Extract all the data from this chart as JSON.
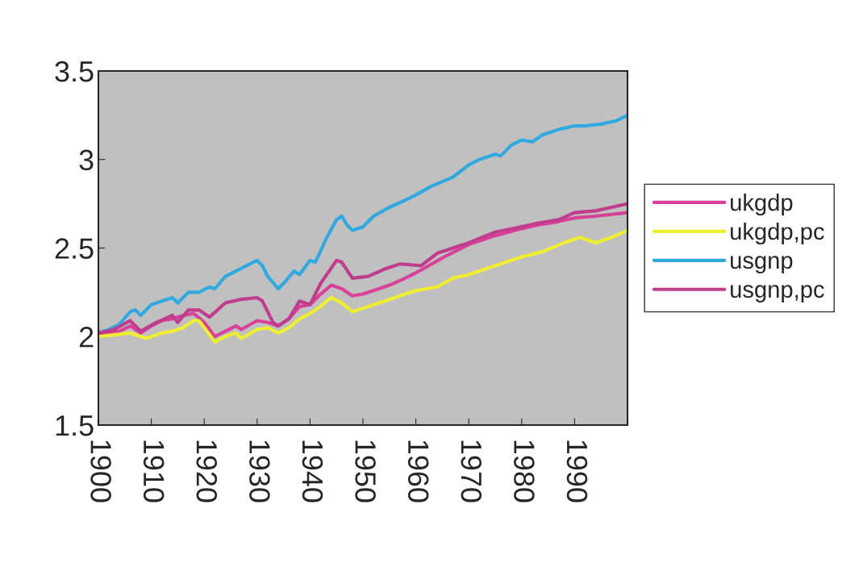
{
  "chart_data": {
    "type": "line",
    "series": [
      {
        "name": "ukgdp",
        "color": "#d8409a",
        "x": [
          1900,
          1902,
          1904,
          1906,
          1908,
          1910,
          1912,
          1914,
          1916,
          1918,
          1920,
          1922,
          1924,
          1926,
          1927,
          1930,
          1932,
          1934,
          1936,
          1938,
          1940,
          1942,
          1944,
          1946,
          1948,
          1950,
          1952,
          1955,
          1958,
          1960,
          1963,
          1966,
          1970,
          1975,
          1980,
          1983,
          1987,
          1990,
          1994,
          1997,
          2000
        ],
        "values": [
          2.0,
          2.02,
          2.03,
          2.06,
          2.02,
          2.06,
          2.09,
          2.1,
          2.12,
          2.13,
          2.08,
          2.0,
          2.03,
          2.06,
          2.04,
          2.09,
          2.08,
          2.06,
          2.1,
          2.17,
          2.18,
          2.24,
          2.29,
          2.27,
          2.23,
          2.24,
          2.26,
          2.29,
          2.33,
          2.36,
          2.41,
          2.46,
          2.52,
          2.57,
          2.61,
          2.63,
          2.65,
          2.67,
          2.68,
          2.69,
          2.7
        ]
      },
      {
        "name": "ukgdp,pc",
        "color": "#f0ee30",
        "x": [
          1900,
          1903,
          1906,
          1908,
          1909,
          1912,
          1914,
          1916,
          1918,
          1919,
          1922,
          1924,
          1926,
          1927,
          1930,
          1932,
          1934,
          1936,
          1938,
          1940,
          1942,
          1944,
          1946,
          1948,
          1950,
          1952,
          1955,
          1958,
          1960,
          1964,
          1967,
          1970,
          1973,
          1977,
          1980,
          1984,
          1988,
          1991,
          1994,
          1997,
          2000
        ],
        "values": [
          2.0,
          2.01,
          2.02,
          2.0,
          1.99,
          2.02,
          2.03,
          2.05,
          2.09,
          2.09,
          1.97,
          2.0,
          2.02,
          1.99,
          2.04,
          2.05,
          2.02,
          2.05,
          2.1,
          2.13,
          2.17,
          2.22,
          2.19,
          2.14,
          2.16,
          2.18,
          2.21,
          2.24,
          2.26,
          2.28,
          2.33,
          2.35,
          2.38,
          2.42,
          2.45,
          2.48,
          2.53,
          2.56,
          2.53,
          2.56,
          2.6
        ]
      },
      {
        "name": "usgnp",
        "color": "#30a8e0",
        "x": [
          1900,
          1902,
          1904,
          1906,
          1907,
          1908,
          1910,
          1912,
          1914,
          1915,
          1917,
          1919,
          1921,
          1922,
          1924,
          1926,
          1928,
          1930,
          1931,
          1932,
          1934,
          1935,
          1937,
          1938,
          1940,
          1941,
          1943,
          1945,
          1946,
          1947,
          1948,
          1950,
          1952,
          1955,
          1958,
          1960,
          1963,
          1967,
          1970,
          1972,
          1975,
          1976,
          1978,
          1980,
          1982,
          1984,
          1987,
          1990,
          1992,
          1995,
          1998,
          2000
        ],
        "values": [
          2.02,
          2.04,
          2.07,
          2.14,
          2.15,
          2.12,
          2.18,
          2.2,
          2.22,
          2.19,
          2.25,
          2.25,
          2.28,
          2.27,
          2.34,
          2.37,
          2.4,
          2.43,
          2.4,
          2.34,
          2.27,
          2.3,
          2.37,
          2.35,
          2.43,
          2.42,
          2.55,
          2.66,
          2.68,
          2.63,
          2.6,
          2.62,
          2.68,
          2.73,
          2.77,
          2.8,
          2.85,
          2.9,
          2.97,
          3.0,
          3.03,
          3.02,
          3.08,
          3.11,
          3.1,
          3.14,
          3.17,
          3.19,
          3.19,
          3.2,
          3.22,
          3.25
        ]
      },
      {
        "name": "usgnp,pc",
        "color": "#c03c8c",
        "x": [
          1900,
          1903,
          1906,
          1908,
          1911,
          1914,
          1915,
          1917,
          1919,
          1921,
          1924,
          1927,
          1930,
          1931,
          1933,
          1934,
          1936,
          1938,
          1940,
          1942,
          1945,
          1946,
          1948,
          1951,
          1954,
          1957,
          1961,
          1964,
          1967,
          1970,
          1975,
          1980,
          1983,
          1987,
          1990,
          1994,
          1997,
          2000
        ],
        "values": [
          2.02,
          2.04,
          2.09,
          2.03,
          2.08,
          2.12,
          2.08,
          2.15,
          2.15,
          2.11,
          2.19,
          2.21,
          2.22,
          2.2,
          2.08,
          2.06,
          2.1,
          2.2,
          2.18,
          2.3,
          2.43,
          2.42,
          2.33,
          2.34,
          2.38,
          2.41,
          2.4,
          2.47,
          2.5,
          2.53,
          2.59,
          2.62,
          2.64,
          2.66,
          2.7,
          2.71,
          2.73,
          2.75
        ]
      }
    ],
    "xlim": [
      1900,
      2000
    ],
    "xticks": [
      1900,
      1910,
      1920,
      1930,
      1940,
      1950,
      1960,
      1970,
      1980,
      1990
    ],
    "ylim": [
      1.5,
      3.5
    ],
    "yticks": [
      1.5,
      {
        "value": 2,
        "label": "2"
      },
      2.5,
      {
        "value": 3,
        "label": "3"
      },
      3.5
    ],
    "grid": false,
    "legend": "right",
    "line_style": "solid",
    "marker": "none"
  }
}
